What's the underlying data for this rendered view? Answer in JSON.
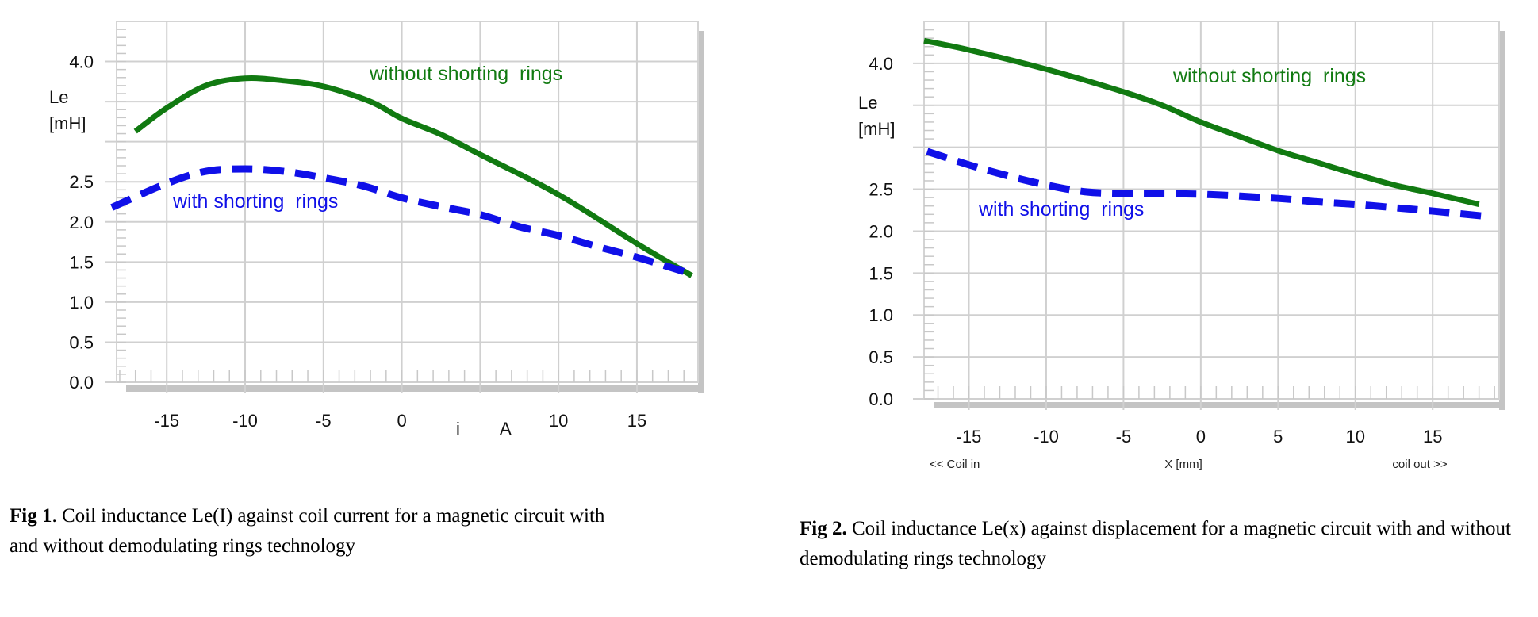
{
  "chart_data": [
    {
      "type": "line",
      "title": "",
      "xlabel_parts": [
        "i",
        "A"
      ],
      "ylabel": [
        "Le",
        "[mH]"
      ],
      "xlim": [
        -18.2,
        18.9
      ],
      "ylim": [
        0,
        4.5
      ],
      "xticks": [
        -15,
        -10,
        -5,
        0,
        10,
        15
      ],
      "xtick_labels": [
        "-15",
        "-10",
        "-5",
        "0",
        "10",
        "15"
      ],
      "xgrid": [
        -15,
        -10,
        -5,
        0,
        5,
        10,
        15
      ],
      "yticks": [
        0,
        0.5,
        1.0,
        1.5,
        2.0,
        2.5,
        4.0
      ],
      "ytick_labels": [
        "0.0",
        "0.5",
        "1.0",
        "1.5",
        "2.0",
        "2.5",
        "4.0"
      ],
      "ygrid": [
        0,
        0.5,
        1.0,
        1.5,
        2.0,
        2.5,
        3.0,
        3.5,
        4.0
      ],
      "grid": true,
      "series": [
        {
          "name": "without shorting  rings",
          "color": "#117a11",
          "style": "solid",
          "x": [
            -17,
            -15,
            -12.5,
            -10,
            -7.5,
            -5,
            -2,
            0,
            2.5,
            5,
            10,
            15,
            18.5
          ],
          "y": [
            3.13,
            3.42,
            3.7,
            3.79,
            3.76,
            3.69,
            3.5,
            3.29,
            3.09,
            2.84,
            2.34,
            1.73,
            1.33
          ]
        },
        {
          "name": "with shorting  rings",
          "color": "#1010e8",
          "style": "dashed",
          "x": [
            -18.5,
            -15,
            -12.5,
            -10,
            -7.5,
            -5,
            -2.5,
            0,
            2.5,
            5,
            7.5,
            10,
            12.5,
            15,
            18.5
          ],
          "y": [
            2.18,
            2.48,
            2.63,
            2.66,
            2.63,
            2.55,
            2.45,
            2.3,
            2.19,
            2.09,
            1.94,
            1.83,
            1.69,
            1.56,
            1.35
          ]
        }
      ]
    },
    {
      "type": "line",
      "title": "",
      "xlabel": "X [mm]",
      "xlabel_left": "<< Coil in",
      "xlabel_right": "coil out >>",
      "ylabel": [
        "Le",
        "[mH]"
      ],
      "xlim": [
        -17.9,
        19.3
      ],
      "ylim": [
        0,
        4.5
      ],
      "xticks": [
        -15,
        -10,
        -5,
        0,
        5,
        10,
        15
      ],
      "xtick_labels": [
        "-15",
        "-10",
        "-5",
        "0",
        "5",
        "10",
        "15"
      ],
      "xgrid": [
        -15,
        -10,
        -5,
        0,
        5,
        10,
        15
      ],
      "yticks": [
        0,
        0.5,
        1.0,
        1.5,
        2.0,
        2.5,
        4.0
      ],
      "ytick_labels": [
        "0.0",
        "0.5",
        "1.0",
        "1.5",
        "2.0",
        "2.5",
        "4.0"
      ],
      "ygrid": [
        0,
        0.5,
        1.0,
        1.5,
        2.0,
        2.5,
        3.0,
        3.5,
        4.0
      ],
      "grid": true,
      "series": [
        {
          "name": "without shorting  rings",
          "color": "#117a11",
          "style": "solid",
          "x": [
            -17.9,
            -15,
            -10,
            -5,
            -2.5,
            0,
            2.5,
            5,
            7.5,
            10,
            12.5,
            15,
            18
          ],
          "y": [
            4.27,
            4.16,
            3.93,
            3.66,
            3.5,
            3.3,
            3.13,
            2.96,
            2.82,
            2.68,
            2.55,
            2.45,
            2.32
          ]
        },
        {
          "name": "with shorting  rings",
          "color": "#1010e8",
          "style": "dashed",
          "x": [
            -17.7,
            -15,
            -12.5,
            -10,
            -7.5,
            -5,
            0,
            5,
            7.5,
            10,
            12.5,
            15,
            18.3
          ],
          "y": [
            2.95,
            2.79,
            2.66,
            2.55,
            2.47,
            2.45,
            2.44,
            2.39,
            2.35,
            2.32,
            2.28,
            2.24,
            2.18
          ]
        }
      ]
    }
  ],
  "captions": [
    {
      "label": "Fig 1",
      "text": ". Coil inductance Le(I) against coil current for a magnetic circuit with and without  demodulating rings technology"
    },
    {
      "label": "Fig 2.",
      "text": " Coil inductance Le(x) against displacement for a magnetic circuit with and without demodulating rings technology"
    }
  ]
}
